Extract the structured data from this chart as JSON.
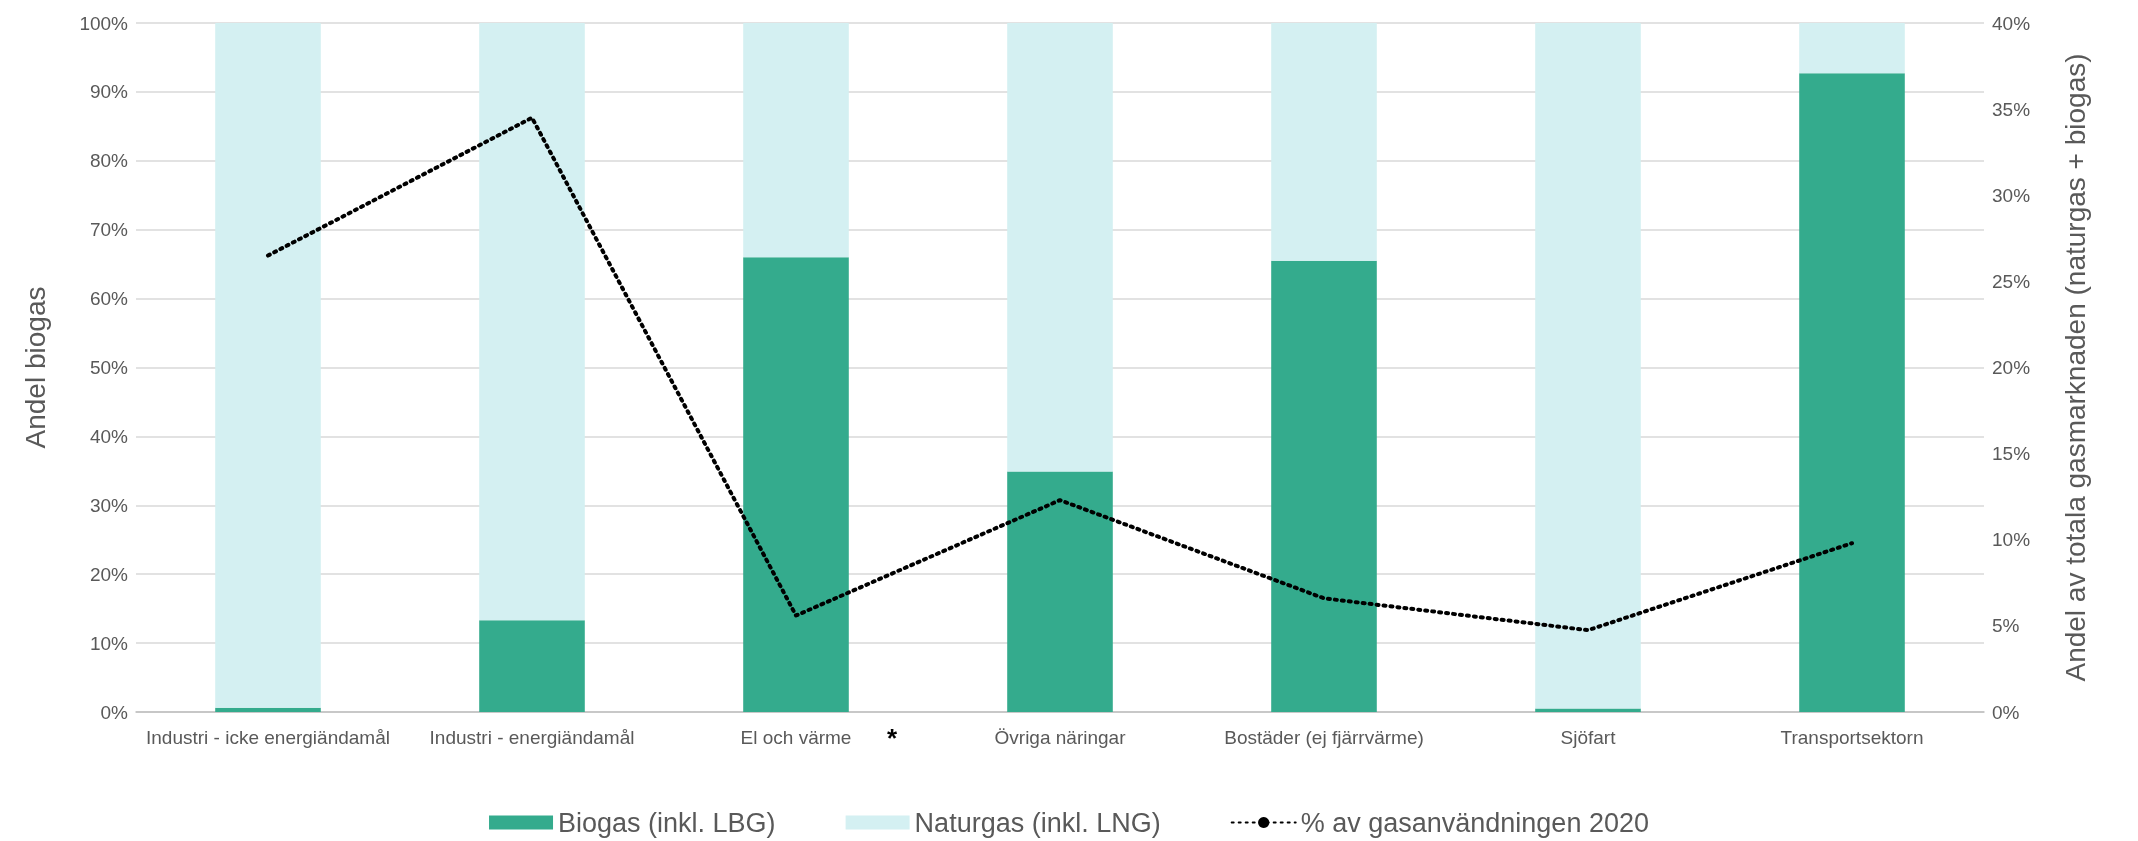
{
  "chart_data": {
    "type": "bar",
    "stacked": true,
    "categories": [
      "Industri - icke energiändamål",
      "Industri - energiändamål",
      "El och värme",
      "Övriga näringar",
      "Bostäder (ej fjärrvärme)",
      "Sjöfart",
      "Transportsektorn"
    ],
    "series": [
      {
        "name": "Biogas (inkl. LBG)",
        "color": "#34ab8d",
        "values": [
          0.6,
          13.3,
          66,
          34.9,
          65.5,
          0.5,
          92.7
        ]
      },
      {
        "name": "Naturgas (inkl. LNG)",
        "color": "#d4f0f2",
        "values": [
          99.4,
          86.7,
          34,
          65.1,
          34.5,
          99.5,
          7.3
        ]
      },
      {
        "name": "% av gasanvändningen 2020",
        "type": "line",
        "axis": "y2",
        "color": "#000000",
        "line_style": "dotted",
        "marker": "none",
        "values": [
          26.5,
          34.5,
          5.6,
          12.3,
          6.6,
          4.75,
          9.8
        ]
      }
    ],
    "ylabel": "Andel biogas",
    "y2label": "Andel av totala gasmarknaden (naturgas + biogas)",
    "ylim": [
      0,
      100
    ],
    "yticks": [
      {
        "value": 0,
        "label": "0%"
      },
      {
        "value": 10,
        "label": "10%"
      },
      {
        "value": 20,
        "label": "20%"
      },
      {
        "value": 30,
        "label": "30%"
      },
      {
        "value": 40,
        "label": "40%"
      },
      {
        "value": 50,
        "label": "50%"
      },
      {
        "value": 60,
        "label": "60%"
      },
      {
        "value": 70,
        "label": "70%"
      },
      {
        "value": 80,
        "label": "80%"
      },
      {
        "value": 90,
        "label": "90%"
      },
      {
        "value": 100,
        "label": "100%"
      }
    ],
    "y2lim": [
      0,
      40
    ],
    "y2ticks": [
      {
        "value": 0,
        "label": "0%"
      },
      {
        "value": 5,
        "label": "5%"
      },
      {
        "value": 10,
        "label": "10%"
      },
      {
        "value": 15,
        "label": "15%"
      },
      {
        "value": 20,
        "label": "20%"
      },
      {
        "value": 25,
        "label": "25%"
      },
      {
        "value": 30,
        "label": "30%"
      },
      {
        "value": 35,
        "label": "35%"
      },
      {
        "value": 40,
        "label": "40%"
      }
    ],
    "grid": "y",
    "legend": "bottom",
    "annotations": [
      "*"
    ]
  }
}
